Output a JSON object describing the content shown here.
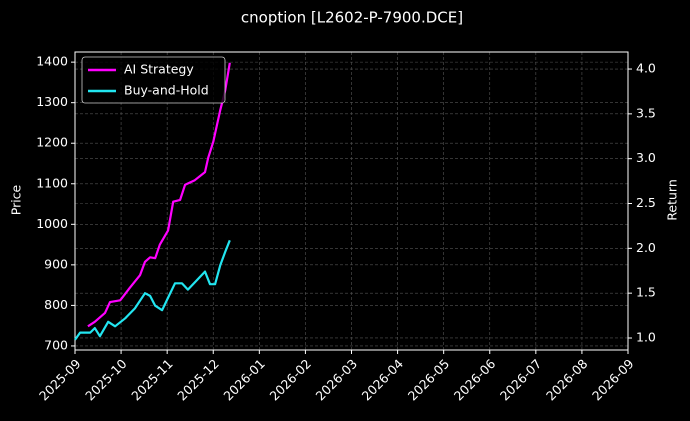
{
  "chart_data": {
    "type": "line",
    "title": "cnoption [L2602-P-7900.DCE]",
    "ylabel": "Price",
    "y2label": "Return",
    "xlim": [
      0,
      12
    ],
    "xticks": [
      {
        "value": 0,
        "label": "2025-09"
      },
      {
        "value": 1,
        "label": "2025-10"
      },
      {
        "value": 2,
        "label": "2025-11"
      },
      {
        "value": 3,
        "label": "2025-12"
      },
      {
        "value": 4,
        "label": "2026-01"
      },
      {
        "value": 5,
        "label": "2026-02"
      },
      {
        "value": 6,
        "label": "2026-03"
      },
      {
        "value": 7,
        "label": "2026-04"
      },
      {
        "value": 8,
        "label": "2026-05"
      },
      {
        "value": 9,
        "label": "2026-06"
      },
      {
        "value": 10,
        "label": "2026-07"
      },
      {
        "value": 11,
        "label": "2026-08"
      },
      {
        "value": 12,
        "label": "2026-09"
      }
    ],
    "ylim": [
      690,
      1425
    ],
    "yticks": [
      700,
      800,
      900,
      1000,
      1100,
      1200,
      1300,
      1400
    ],
    "y2lim": [
      0.866,
      4.19
    ],
    "y2ticks": [
      {
        "value": 1,
        "label": "1.0"
      },
      {
        "value": 1.5,
        "label": "1.5"
      },
      {
        "value": 2,
        "label": "2.0"
      },
      {
        "value": 2.5,
        "label": "2.5"
      },
      {
        "value": 3,
        "label": "3.0"
      },
      {
        "value": 3.5,
        "label": "3.5"
      },
      {
        "value": 4,
        "label": "4.0"
      }
    ],
    "grid": true,
    "legend": "upper-left",
    "series": [
      {
        "name": "AI Strategy",
        "color": "#ff00ff",
        "axis": "y2",
        "x": [
          0.28,
          0.43,
          0.65,
          0.76,
          0.98,
          1.19,
          1.41,
          1.52,
          1.63,
          1.74,
          1.84,
          2.02,
          2.13,
          2.28,
          2.39,
          2.6,
          2.82,
          2.89,
          3.0,
          3.15,
          3.26,
          3.36
        ],
        "values": [
          1.13,
          1.18,
          1.28,
          1.4,
          1.42,
          1.56,
          1.7,
          1.85,
          1.9,
          1.89,
          2.04,
          2.2,
          2.52,
          2.54,
          2.71,
          2.76,
          2.85,
          3.01,
          3.19,
          3.54,
          3.76,
          4.07
        ]
      },
      {
        "name": "Buy-and-Hold",
        "color": "#22e5f0",
        "axis": "y2",
        "x": [
          0,
          0.11,
          0.33,
          0.43,
          0.54,
          0.72,
          0.87,
          1.09,
          1.3,
          1.52,
          1.63,
          1.74,
          1.89,
          2.02,
          2.17,
          2.32,
          2.45,
          2.6,
          2.82,
          2.93,
          3.04,
          3.15,
          3.26,
          3.36
        ],
        "values": [
          0.98,
          1.06,
          1.06,
          1.11,
          1.02,
          1.18,
          1.13,
          1.22,
          1.33,
          1.5,
          1.47,
          1.36,
          1.31,
          1.45,
          1.61,
          1.61,
          1.54,
          1.62,
          1.74,
          1.6,
          1.6,
          1.81,
          1.96,
          2.09
        ]
      }
    ]
  }
}
